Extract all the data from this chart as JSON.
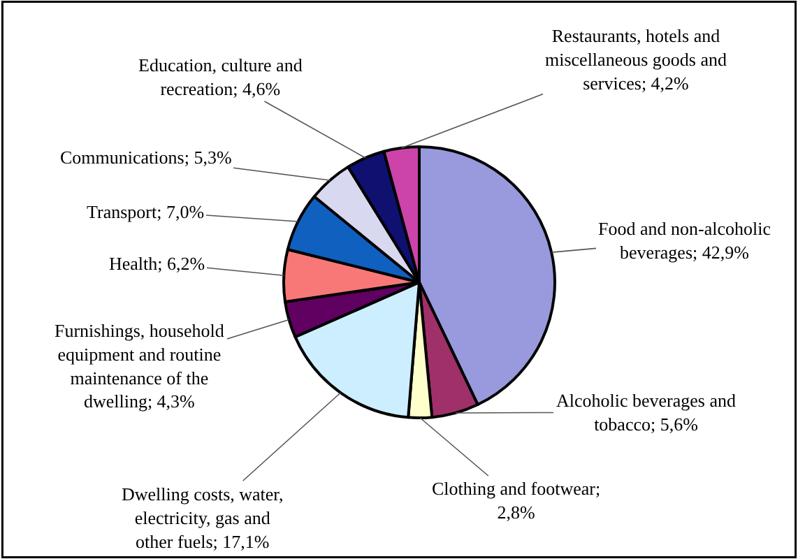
{
  "chart_data": {
    "type": "pie",
    "categories": [
      "Food and non-alcoholic beverages; 42,9%",
      "Alcoholic beverages and tobacco; 5,6%",
      "Clothing and footwear; 2,8%",
      "Dwelling costs, water, electricity, gas and other fuels; 17,1%",
      "Furnishings, household equipment and routine maintenance of the dwelling; 4,3%",
      "Health; 6,2%",
      "Transport; 7,0%",
      "Communications; 5,3%",
      "Education, culture and recreation; 4,6%",
      "Restaurants, hotels and miscellaneous goods and services; 4,2%"
    ],
    "values": [
      42.9,
      5.6,
      2.8,
      17.1,
      4.3,
      6.2,
      7.0,
      5.3,
      4.6,
      4.2
    ],
    "colors": [
      "#9999dd",
      "#a0306a",
      "#ffffcc",
      "#cceeff",
      "#600060",
      "#f87878",
      "#1060c0",
      "#d8d8f0",
      "#101070",
      "#cc44aa"
    ],
    "legend": false
  }
}
